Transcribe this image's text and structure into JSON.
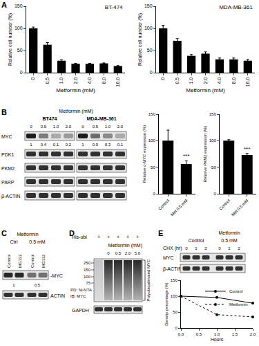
{
  "chart_data": [
    {
      "type": "bar",
      "title": "BT-474",
      "x_label": "Metformin (mM)",
      "y_label": "Relative cell number (%)",
      "categories": [
        "0",
        "0.5",
        "1.0",
        "2.0",
        "4.0",
        "8.0",
        "16.0"
      ],
      "values": [
        100,
        63,
        27,
        20,
        20,
        21,
        15
      ],
      "errors": [
        3,
        5,
        2,
        1,
        1,
        1,
        1
      ],
      "color": "#000000",
      "ylim": [
        0,
        150
      ],
      "yticks": [
        0,
        50,
        100,
        150
      ],
      "grid": false
    },
    {
      "type": "bar",
      "title": "MDA-MB-361",
      "x_label": "Metformin (mM)",
      "y_label": "Relative cell number (%)",
      "categories": [
        "0",
        "0.5",
        "1.0",
        "2.0",
        "4.0",
        "8.0",
        "16.0"
      ],
      "values": [
        100,
        72,
        38,
        43,
        30,
        30,
        27
      ],
      "errors": [
        7,
        5,
        3,
        4,
        3,
        3,
        3
      ],
      "color": "#000000",
      "ylim": [
        0,
        150
      ],
      "yticks": [
        0,
        50,
        100,
        150
      ],
      "grid": false
    },
    {
      "type": "bar",
      "y_label": "Relative c-MYC expression (%)",
      "categories": [
        "Control",
        "Met 0.5 mM"
      ],
      "values": [
        100,
        56
      ],
      "errors": [
        20,
        6
      ],
      "annotations": [
        {
          "category": "Met 0.5 mM",
          "text": "***"
        }
      ],
      "color": "#000000",
      "ylim": [
        0,
        150
      ],
      "yticks": [
        0,
        50,
        100,
        150
      ],
      "grid": false
    },
    {
      "type": "bar",
      "y_label": "Relative PKM2 expression (%)",
      "categories": [
        "Control",
        "Met 0.5 mM"
      ],
      "values": [
        100,
        73
      ],
      "errors": [
        2,
        3
      ],
      "annotations": [
        {
          "category": "Met 0.5 mM",
          "text": "***"
        }
      ],
      "color": "#000000",
      "ylim": [
        0,
        150
      ],
      "yticks": [
        0,
        50,
        100,
        150
      ],
      "grid": false
    },
    {
      "type": "line",
      "x_label": "Hours",
      "y_label": "Density percentage (%)",
      "x": [
        0,
        1,
        2
      ],
      "series": [
        {
          "name": "Control",
          "color": "#000000",
          "values": [
            100,
            96,
            78
          ],
          "marker": "circle",
          "line_style": "solid"
        },
        {
          "name": "Metformin",
          "color": "#000000",
          "values": [
            100,
            42,
            35
          ],
          "marker": "circle",
          "line_style": "dot"
        }
      ],
      "xlim": [
        0,
        2
      ],
      "xticks": [
        {
          "value": 0,
          "label": "0.0"
        },
        {
          "value": 0.5,
          "label": "0.5"
        },
        {
          "value": 1,
          "label": "1.0"
        },
        {
          "value": 1.5,
          "label": "1.5"
        },
        {
          "value": 2,
          "label": "2.0"
        }
      ],
      "ylim": [
        0,
        150
      ],
      "yticks": [
        0,
        50,
        100,
        150
      ],
      "legend": "top right",
      "grid": false
    }
  ],
  "panel_labels": [
    "A",
    "B",
    "C",
    "D",
    "E"
  ],
  "blots": {
    "B": {
      "cell_lines": [
        "BT474",
        "MDA-MB-361"
      ],
      "treatment": "Metformin (mM)",
      "doses": [
        "0",
        "0.5",
        "1.0",
        "2.0"
      ],
      "rows": [
        "MYC",
        "PDK1",
        "PKM2",
        "PARP",
        "β-ACTIN"
      ],
      "myc_ratios": [
        [
          1,
          0.4,
          0.1,
          0.2
        ],
        [
          1,
          0.5,
          0.3,
          0.1
        ]
      ]
    },
    "C": {
      "treatment": "Metformin",
      "groups": [
        "Ctrl",
        "0.5 mM"
      ],
      "lanes": [
        "Control",
        "MG132",
        "Control",
        "MG132"
      ],
      "band_label": "-MYC",
      "ratios": [
        1,
        0.5
      ],
      "loading": "ACTIN"
    },
    "D": {
      "rows": [
        {
          "label": "His-ubi",
          "lanes": [
            "+",
            "+",
            "+",
            "+",
            "+"
          ]
        }
      ],
      "treatment": "Metformin (mM)",
      "doses": [
        "0",
        "0.5",
        "2.0",
        "5.0"
      ],
      "markers": [
        250,
        150,
        100,
        75
      ],
      "side_label": "PD: Ni-NTA",
      "side_label2": "IB: MYC",
      "bracket_label": "Polyubiquitinated MYC",
      "loading": "GAPDH"
    },
    "E": {
      "treatment": "Metformin",
      "groups": [
        "Control",
        "0.5 mM"
      ],
      "lane_label": "CHX (hr)",
      "lanes": [
        "0",
        "1",
        "2",
        "0",
        "1",
        "2"
      ],
      "rows": [
        "MYC",
        "β-ACTIN"
      ]
    }
  }
}
